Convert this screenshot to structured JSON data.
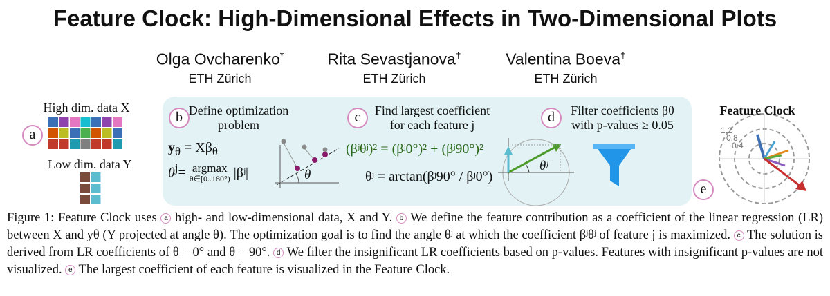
{
  "title": "Feature Clock: High-Dimensional Effects in Two-Dimensional Plots",
  "authors": [
    {
      "name": "Olga Ovcharenko",
      "mark": "*",
      "affiliation": "ETH Zürich"
    },
    {
      "name": "Rita Sevastjanova",
      "mark": "†",
      "affiliation": "ETH Zürich"
    },
    {
      "name": "Valentina Boeva",
      "mark": "†",
      "affiliation": "ETH Zürich"
    }
  ],
  "figure": {
    "panel_a": {
      "badge": "a",
      "high_label": "High dim. data X",
      "low_label": "Low dim. data Y"
    },
    "panel_b": {
      "badge": "b",
      "title": [
        "Define optimization",
        "problem"
      ],
      "formula_1": {
        "lhs": "y",
        "lhs_sub": "θ",
        "rhs": "= Xβ",
        "rhs_sub": "θ"
      },
      "formula_2": {
        "lhs": "θ",
        "lhs_sup": "j",
        "eq": "=",
        "op": "argmax",
        "under": "θ∈[0..180°)",
        "rhs": "|βʲ|"
      },
      "diagram_label": "θ"
    },
    "panel_c": {
      "badge": "c",
      "title": [
        "Find largest coefficient",
        "for each feature j"
      ],
      "formula_1": "(βʲθʲ)² = (βʲ0°)² + (βʲ90°)²",
      "formula_2": "θʲ = arctan(βʲ90° / βʲ0°)",
      "diagram_label": "θʲ"
    },
    "panel_d": {
      "badge": "d",
      "title": [
        "Filter coefficients βθ",
        "with p-values ≥ 0.05"
      ]
    },
    "panel_e": {
      "badge": "e",
      "title": "Feature Clock",
      "ticks": [
        "1.2",
        "0.8",
        "0.4"
      ]
    }
  },
  "caption": [
    "Figure 1: Feature Clock uses ",
    {
      "badge": "a"
    },
    " high- and low-dimensional data, X and Y. ",
    {
      "badge": "b"
    },
    " We define the feature contribution as a coefficient of the linear regression (LR) between X and yθ (Y projected at angle θ). The optimization goal is to find the angle θʲ at which the coefficient βʲθʲ of feature j is maximized. ",
    {
      "badge": "c"
    },
    " The solution is derived from LR coefficients of θ = 0° and θ = 90°. ",
    {
      "badge": "d"
    },
    " We filter the insignificant LR coefficients based on p-values. Features with insignificant p-values are not visualized. ",
    {
      "badge": "e"
    },
    " The largest coefficient of each feature is visualized in the Feature Clock."
  ]
}
